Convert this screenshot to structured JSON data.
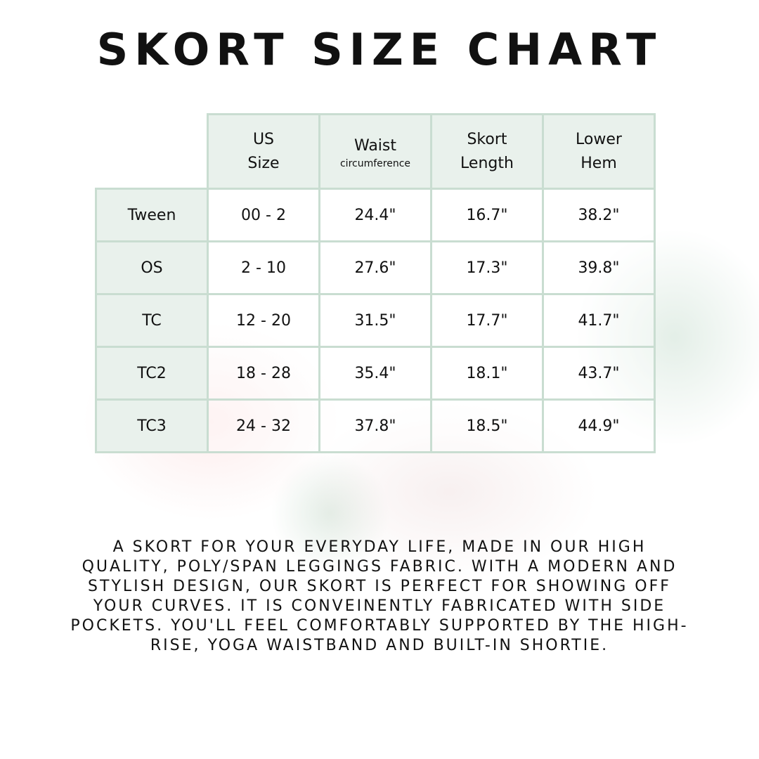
{
  "title": "SKORT SIZE CHART",
  "table": {
    "headers": [
      {
        "line1": "US",
        "line2": "Size"
      },
      {
        "line1": "Waist",
        "line2": "circumference"
      },
      {
        "line1": "Skort",
        "line2": "Length"
      },
      {
        "line1": "Lower",
        "line2": "Hem"
      }
    ],
    "rows": [
      {
        "label": "Tween",
        "us_size": "00 - 2",
        "waist": "24.4\"",
        "length": "16.7\"",
        "hem": "38.2\""
      },
      {
        "label": "OS",
        "us_size": "2 - 10",
        "waist": "27.6\"",
        "length": "17.3\"",
        "hem": "39.8\""
      },
      {
        "label": "TC",
        "us_size": "12 - 20",
        "waist": "31.5\"",
        "length": "17.7\"",
        "hem": "41.7\""
      },
      {
        "label": "TC2",
        "us_size": "18 - 28",
        "waist": "35.4\"",
        "length": "18.1\"",
        "hem": "43.7\""
      },
      {
        "label": "TC3",
        "us_size": "24 - 32",
        "waist": "37.8\"",
        "length": "18.5\"",
        "hem": "44.9\""
      }
    ]
  },
  "description": "A skort for your everyday life, made in our high quality, poly/span leggings fabric. With a modern and stylish design, our skort is perfect for showing off your curves. It is conveinently fabricated with side pockets. You'll feel comfortably supported by the high-rise, yoga waistband and built-in shortie.",
  "colors": {
    "cell_header": "#e9f1ec",
    "border": "#c9ddd1"
  }
}
